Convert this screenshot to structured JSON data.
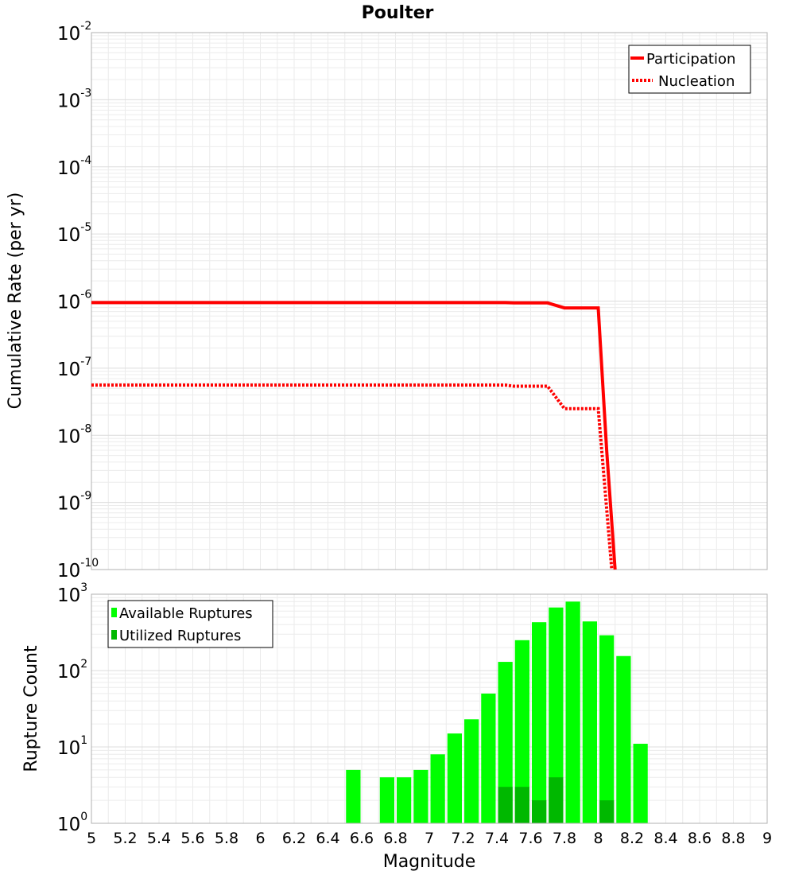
{
  "title": "Poulter",
  "chart_data": [
    {
      "id": "rate",
      "type": "line",
      "ylabel": "Cumulative Rate (per yr)",
      "yscale": "log",
      "ylim_exp": [
        -10,
        -2
      ],
      "ytick_exponents": [
        "-2",
        "-3",
        "-4",
        "-5",
        "-6",
        "-7",
        "-8",
        "-9",
        "-10"
      ],
      "xlim": [
        5,
        9
      ],
      "legend_position": "top-right",
      "series": [
        {
          "name": "Participation",
          "color": "#ff0000",
          "style": "solid",
          "x": [
            5.0,
            7.45,
            7.5,
            7.7,
            7.8,
            8.0,
            8.05,
            8.1
          ],
          "y": [
            9.5e-07,
            9.5e-07,
            9.4e-07,
            9.4e-07,
            7.9e-07,
            7.9e-07,
            6e-09,
            1e-10
          ]
        },
        {
          "name": "Nucleation",
          "color": "#ff0000",
          "style": "dotted",
          "x": [
            5.0,
            7.45,
            7.5,
            7.7,
            7.8,
            8.0,
            8.05,
            8.08
          ],
          "y": [
            5.6e-08,
            5.6e-08,
            5.4e-08,
            5.4e-08,
            2.5e-08,
            2.5e-08,
            8e-10,
            1e-10
          ]
        }
      ]
    },
    {
      "id": "counts",
      "type": "bar",
      "xlabel": "Magnitude",
      "ylabel": "Rupture Count",
      "yscale": "log",
      "ylim_exp": [
        0,
        3
      ],
      "ytick_exponents": [
        "3",
        "2",
        "1",
        "0"
      ],
      "xlim": [
        5,
        9
      ],
      "xticks": [
        "5",
        "5.2",
        "5.4",
        "5.6",
        "5.8",
        "6",
        "6.2",
        "6.4",
        "6.6",
        "6.8",
        "7",
        "7.2",
        "7.4",
        "7.6",
        "7.8",
        "8",
        "8.2",
        "8.4",
        "8.6",
        "8.8",
        "9"
      ],
      "bin_width": 0.1,
      "legend_position": "top-left",
      "series": [
        {
          "name": "Available Ruptures",
          "color": "#00ff00",
          "x": [
            6.55,
            6.75,
            6.85,
            6.95,
            7.05,
            7.15,
            7.25,
            7.35,
            7.45,
            7.55,
            7.65,
            7.75,
            7.85,
            7.95,
            8.05,
            8.15,
            8.25
          ],
          "values": [
            5,
            4,
            4,
            5,
            8,
            15,
            23,
            50,
            130,
            250,
            430,
            670,
            800,
            440,
            290,
            155,
            11
          ]
        },
        {
          "name": "Utilized Ruptures",
          "color": "#00b800",
          "x": [
            7.45,
            7.55,
            7.65,
            7.75,
            8.05,
            8.15
          ],
          "values": [
            3,
            3,
            2,
            4,
            2,
            1
          ]
        }
      ]
    }
  ]
}
